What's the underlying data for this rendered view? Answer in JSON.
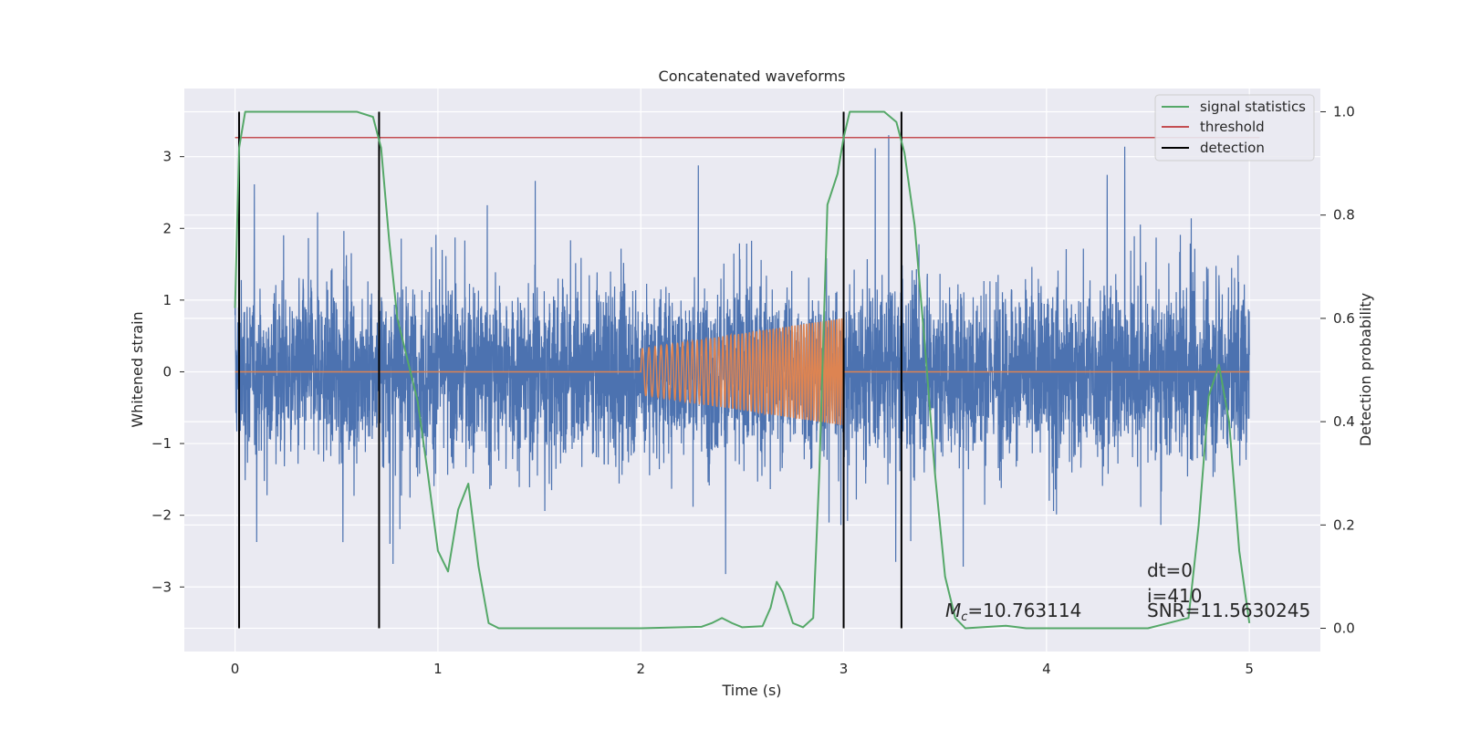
{
  "chart_data": {
    "type": "line",
    "title": "Concatenated waveforms",
    "xlabel": "Time (s)",
    "ylabel": "Whitened strain",
    "y2label": "Detection probability",
    "xlim": [
      -0.25,
      5.35
    ],
    "ylim": [
      -3.9,
      3.95
    ],
    "y2lim": [
      -0.045,
      1.045
    ],
    "grid": true,
    "xticks": [
      0,
      1,
      2,
      3,
      4,
      5
    ],
    "yticks": [
      -3,
      -2,
      -1,
      0,
      1,
      2,
      3
    ],
    "y2ticks": [
      0.0,
      0.2,
      0.4,
      0.6,
      0.8,
      1.0
    ],
    "y2tick_labels": [
      "0.0",
      "0.2",
      "0.4",
      "0.6",
      "0.8",
      "1.0"
    ],
    "ytick_labels": [
      "−3",
      "−2",
      "−1",
      "0",
      "1",
      "2",
      "3"
    ],
    "legend": {
      "placement": "top-right",
      "entries": [
        "signal statistics",
        "threshold",
        "detection"
      ]
    },
    "series": [
      {
        "name": "strain",
        "axis": "left",
        "color": "#4c72b0",
        "description_type": "noise",
        "x_range": [
          0,
          5
        ],
        "y_range": [
          -3.2,
          3.3
        ]
      },
      {
        "name": "injected",
        "axis": "left",
        "color": "#dd8452",
        "chirp": {
          "x_start": 2.0,
          "x_end": 3.0,
          "amp_start": 0.32,
          "amp_end": 0.75
        },
        "x_range": [
          0,
          5
        ]
      },
      {
        "name": "signal statistics",
        "axis": "right",
        "color": "#55a868",
        "x": [
          0.0,
          0.02,
          0.05,
          0.1,
          0.3,
          0.6,
          0.68,
          0.72,
          0.76,
          0.8,
          0.85,
          0.9,
          0.95,
          1.0,
          1.05,
          1.1,
          1.15,
          1.2,
          1.25,
          1.3,
          1.5,
          2.0,
          2.3,
          2.35,
          2.4,
          2.45,
          2.5,
          2.6,
          2.64,
          2.67,
          2.7,
          2.75,
          2.8,
          2.85,
          2.88,
          2.92,
          2.97,
          3.0,
          3.03,
          3.06,
          3.1,
          3.2,
          3.26,
          3.3,
          3.35,
          3.4,
          3.45,
          3.5,
          3.55,
          3.6,
          3.8,
          3.9,
          4.5,
          4.7,
          4.75,
          4.8,
          4.85,
          4.9,
          4.95,
          5.0
        ],
        "y": [
          0.62,
          0.93,
          1.0,
          1.0,
          1.0,
          1.0,
          0.99,
          0.93,
          0.75,
          0.6,
          0.52,
          0.44,
          0.3,
          0.15,
          0.11,
          0.23,
          0.28,
          0.12,
          0.01,
          0.0,
          0.0,
          0.0,
          0.003,
          0.01,
          0.02,
          0.01,
          0.002,
          0.004,
          0.04,
          0.09,
          0.07,
          0.01,
          0.002,
          0.02,
          0.3,
          0.82,
          0.88,
          0.95,
          1.0,
          1.0,
          1.0,
          1.0,
          0.98,
          0.92,
          0.78,
          0.55,
          0.3,
          0.1,
          0.02,
          0.0,
          0.005,
          0.0,
          0.0,
          0.02,
          0.2,
          0.45,
          0.51,
          0.4,
          0.15,
          0.01
        ]
      },
      {
        "name": "threshold",
        "axis": "right",
        "color": "#c44e52",
        "x": [
          0,
          5.05
        ],
        "y": [
          0.95,
          0.95
        ]
      }
    ],
    "detections": {
      "name": "detection",
      "color": "#000000",
      "x": [
        0.02,
        0.71,
        3.0,
        3.285
      ]
    },
    "annotations": {
      "mc": "=10.763114",
      "mc_symbol": "M",
      "mc_sub": "c",
      "dt": "dt=0",
      "i": "i=410",
      "snr": "SNR=11.5630245"
    }
  }
}
